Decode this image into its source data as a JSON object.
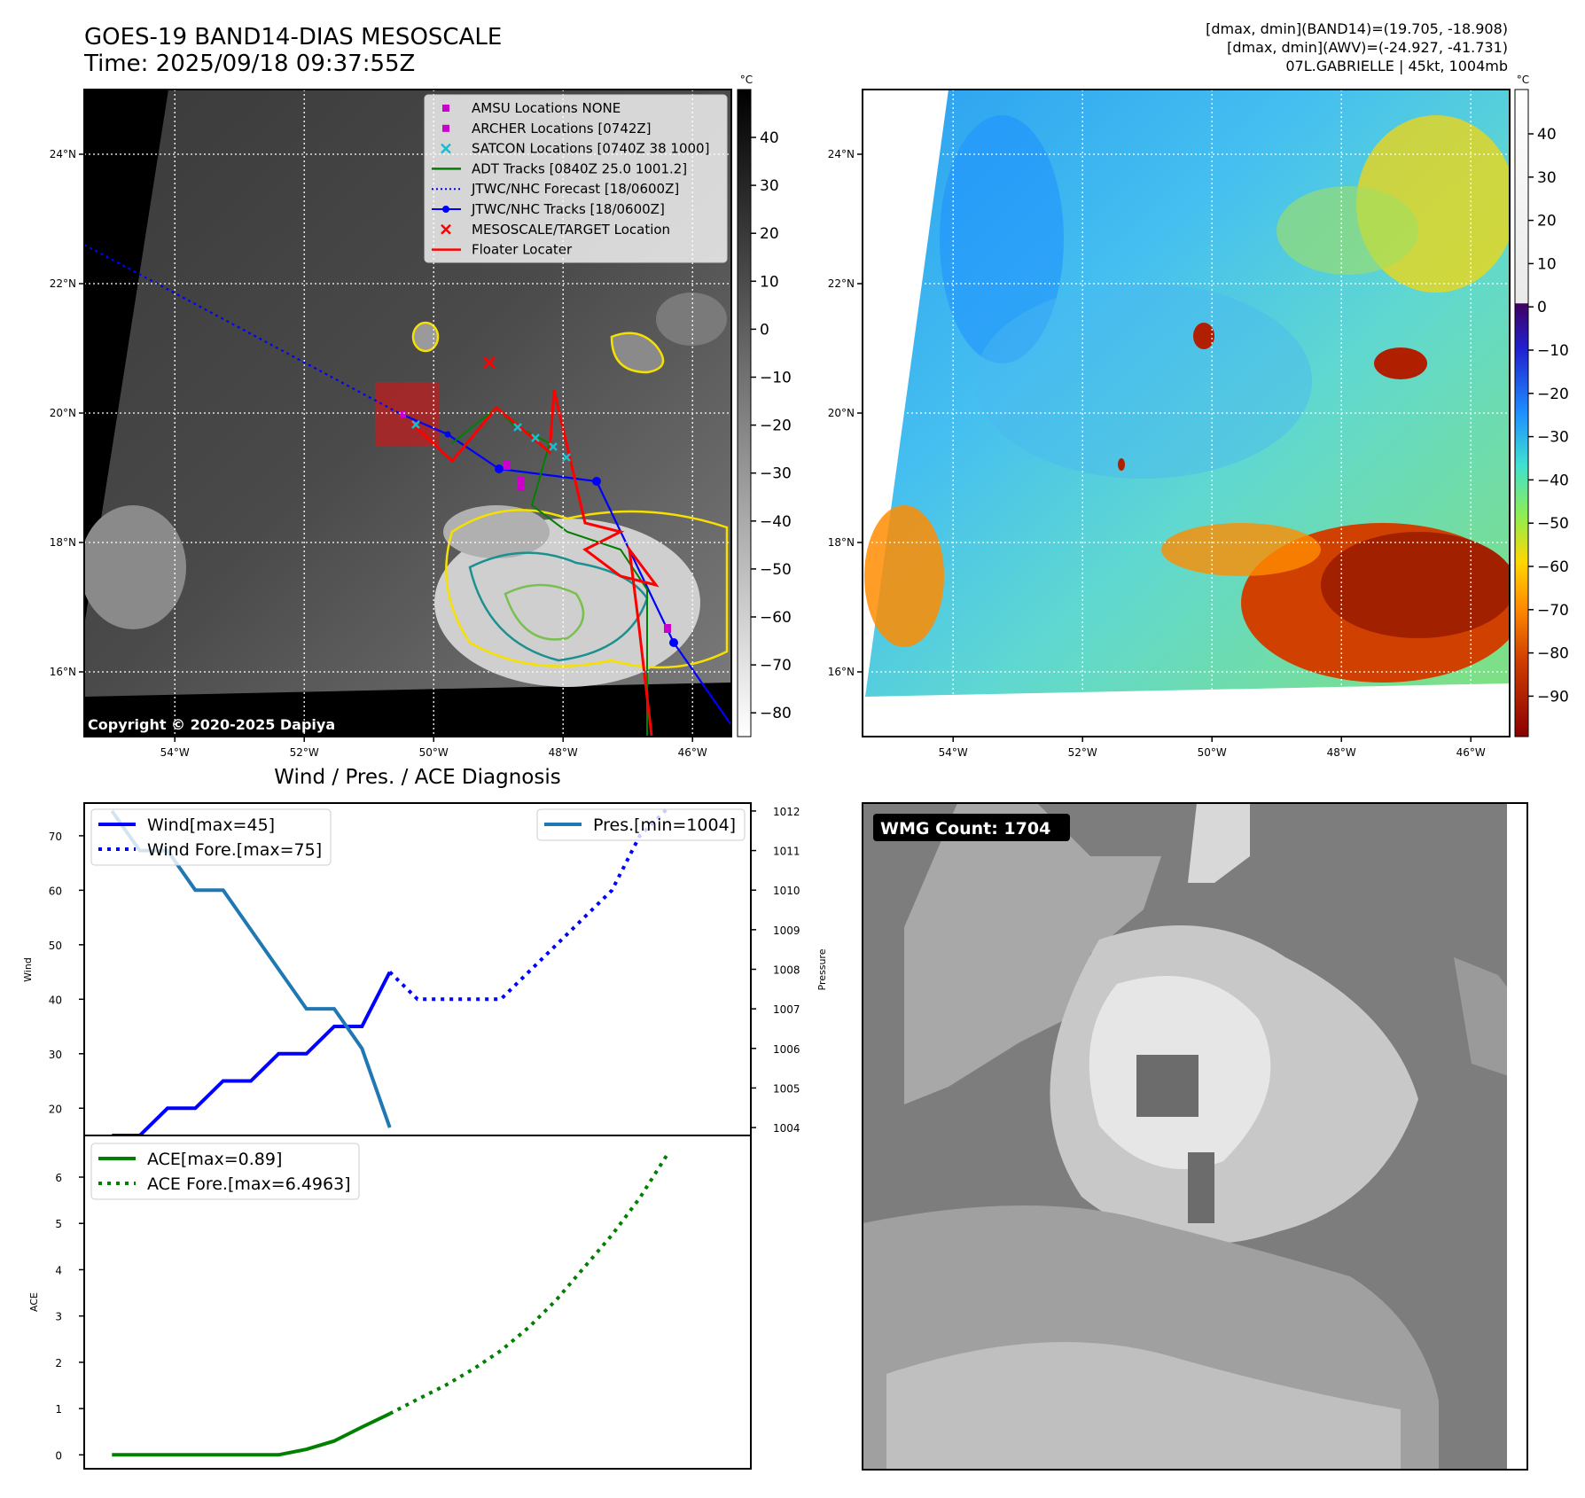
{
  "header": {
    "title_line1": "GOES-19 BAND14-DIAS MESOSCALE",
    "title_line2": "Time: 2025/09/18 09:37:55Z",
    "info_line1": "[dmax, dmin](BAND14)=(19.705, -18.908)",
    "info_line2": "[dmax, dmin](AWV)=(-24.927, -41.731)",
    "info_line3": "07L.GABRIELLE | 45kt, 1004mb"
  },
  "map_axes": {
    "lat_labels": [
      "24°N",
      "22°N",
      "20°N",
      "18°N",
      "16°N"
    ],
    "lon_labels": [
      "54°W",
      "52°W",
      "50°W",
      "48°W",
      "46°W"
    ],
    "lat_values": [
      24,
      22,
      20,
      18,
      16
    ],
    "lon_values": [
      -54,
      -52,
      -50,
      -48,
      -46
    ]
  },
  "ir_panel": {
    "copyright": "Copyright © 2020-2025 Dapiya",
    "colorbar_unit": "°C",
    "colorbar_ticks": [
      "40",
      "30",
      "20",
      "10",
      "0",
      "−10",
      "−20",
      "−30",
      "−40",
      "−50",
      "−60",
      "−70",
      "−80"
    ],
    "legend": [
      {
        "label": "AMSU Locations NONE",
        "color": "#cc00cc",
        "marker": "square"
      },
      {
        "label": "ARCHER Locations [0742Z]",
        "color": "#cc00cc",
        "marker": "square"
      },
      {
        "label": "SATCON Locations [0740Z 38 1000]",
        "color": "#17becf",
        "marker": "x"
      },
      {
        "label": "ADT Tracks [0840Z 25.0 1001.2]",
        "color": "#008000",
        "marker": "line"
      },
      {
        "label": "JTWC/NHC Forecast [18/0600Z]",
        "color": "#0000ff",
        "marker": "dotted"
      },
      {
        "label": "JTWC/NHC Tracks [18/0600Z]",
        "color": "#0000ff",
        "marker": "line-dot"
      },
      {
        "label": "MESOSCALE/TARGET Location",
        "color": "#ff0000",
        "marker": "x"
      },
      {
        "label": "Floater Locater",
        "color": "#ff0000",
        "marker": "line"
      }
    ]
  },
  "awv_panel": {
    "colorbar_unit": "°C",
    "colorbar_ticks": [
      "40",
      "30",
      "20",
      "10",
      "0",
      "−10",
      "−20",
      "−30",
      "−40",
      "−50",
      "−60",
      "−70",
      "−80",
      "−90"
    ]
  },
  "wmg_panel": {
    "badge": "WMG Count: 1704"
  },
  "chart_data": [
    {
      "type": "line",
      "title": "Wind / Pres. / ACE Diagnosis",
      "ylabel": "Wind",
      "ylabel_right": "Pressure",
      "ylim": [
        15,
        76
      ],
      "ylim_right": [
        1003.8,
        1012.2
      ],
      "y_ticks": [
        "70",
        "60",
        "50",
        "40",
        "30",
        "20"
      ],
      "y_ticks_right": [
        "1012",
        "1011",
        "1010",
        "1009",
        "1008",
        "1007",
        "1006",
        "1005",
        "1004"
      ],
      "x": [
        0,
        1,
        2,
        3,
        4,
        5,
        6,
        7,
        8,
        9,
        10,
        11,
        12,
        13,
        14,
        15,
        16,
        17,
        18,
        19,
        20
      ],
      "xlim": [
        -1,
        23
      ],
      "series": [
        {
          "name": "Wind[max=45]",
          "style": "solid",
          "color": "#0000ff",
          "axis": "left",
          "x": [
            0,
            1,
            2,
            3,
            4,
            5,
            6,
            7,
            8,
            9,
            10
          ],
          "values": [
            15,
            15,
            20,
            20,
            25,
            25,
            30,
            30,
            35,
            35,
            45
          ]
        },
        {
          "name": "Wind Fore.[max=75]",
          "style": "dotted",
          "color": "#0000ff",
          "axis": "left",
          "x": [
            10,
            11,
            12,
            13,
            14,
            15,
            16,
            17,
            18,
            19,
            20
          ],
          "values": [
            45,
            40,
            40,
            40,
            40,
            45,
            50,
            55,
            60,
            70,
            75
          ]
        },
        {
          "name": "Pres.[min=1004]",
          "style": "solid",
          "color": "#1f77b4",
          "axis": "right",
          "x": [
            0,
            1,
            2,
            3,
            4,
            5,
            6,
            7,
            8,
            9,
            10
          ],
          "values": [
            1012,
            1011,
            1011,
            1010,
            1010,
            1009,
            1008,
            1007,
            1007,
            1006,
            1004
          ]
        }
      ]
    },
    {
      "type": "line",
      "ylabel": "ACE",
      "ylim": [
        -0.3,
        6.9
      ],
      "y_ticks": [
        "6",
        "5",
        "4",
        "3",
        "2",
        "1",
        "0"
      ],
      "x": [
        0,
        1,
        2,
        3,
        4,
        5,
        6,
        7,
        8,
        9,
        10,
        11,
        12,
        13,
        14,
        15,
        16,
        17,
        18,
        19,
        20
      ],
      "xlim": [
        -1,
        23
      ],
      "series": [
        {
          "name": "ACE[max=0.89]",
          "style": "solid",
          "color": "#008000",
          "x": [
            0,
            1,
            2,
            3,
            4,
            5,
            6,
            7,
            8,
            9,
            10
          ],
          "values": [
            0,
            0,
            0,
            0,
            0,
            0,
            0,
            0.12,
            0.3,
            0.6,
            0.89
          ]
        },
        {
          "name": "ACE Fore.[max=6.4963]",
          "style": "dotted",
          "color": "#008000",
          "x": [
            10,
            11,
            12,
            13,
            14,
            15,
            16,
            17,
            18,
            19,
            20
          ],
          "values": [
            0.89,
            1.2,
            1.5,
            1.85,
            2.25,
            2.75,
            3.35,
            4.05,
            4.75,
            5.55,
            6.4963
          ]
        }
      ]
    }
  ]
}
